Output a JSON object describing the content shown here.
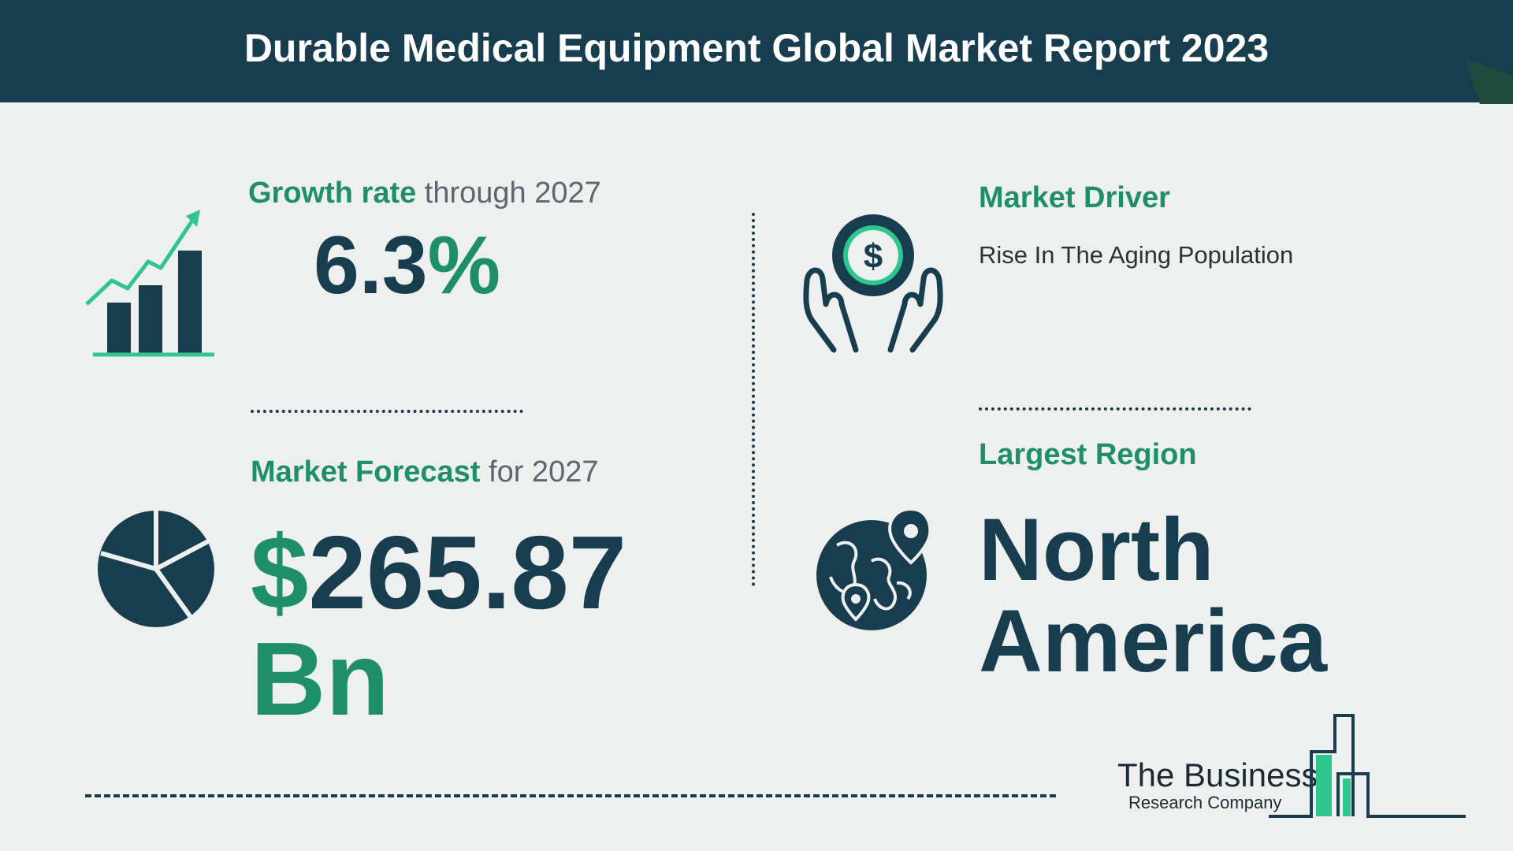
{
  "header": {
    "title": "Durable Medical Equipment Global Market Report 2023"
  },
  "growth": {
    "label_strong": "Growth rate",
    "label_rest": " through 2027",
    "value": "6.3",
    "unit": "%"
  },
  "forecast": {
    "label_strong": "Market Forecast",
    "label_rest": " for 2027",
    "currency": "$",
    "value": "265.87",
    "unit": "Bn"
  },
  "driver": {
    "heading": "Market Driver",
    "text": "Rise In The Aging Population"
  },
  "region": {
    "heading": "Largest Region",
    "line1": "North",
    "line2": "America"
  },
  "logo": {
    "name": "The Business",
    "subtitle": "Research Company"
  },
  "icons": {
    "growth": "bar-chart-growth-icon",
    "driver": "hands-holding-dollar-icon",
    "forecast": "pie-chart-icon",
    "region": "globe-location-icon",
    "logo": "buildings-icon"
  },
  "colors": {
    "navy": "#173d4f",
    "green": "#1f8f6b",
    "accent_green": "#2ec58f",
    "background": "#eef0ef"
  }
}
